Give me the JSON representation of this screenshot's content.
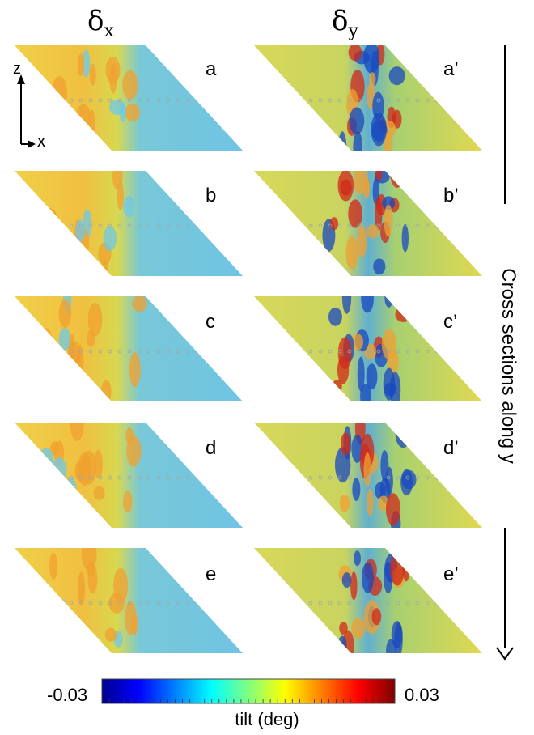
{
  "headers": {
    "dx_symbol": "δ",
    "dx_sub": "x",
    "dy_symbol": "δ",
    "dy_sub": "y"
  },
  "axes_inset": {
    "vertical": "z",
    "horizontal": "x"
  },
  "panels_left": [
    "a",
    "b",
    "c",
    "d",
    "e"
  ],
  "panels_right": [
    "a’",
    "b’",
    "c’",
    "d’",
    "e’"
  ],
  "side_label": "Cross sections along y",
  "colorbar": {
    "min_label": "-0.03",
    "max_label": "0.03",
    "label": "tilt (deg)",
    "colormap": "jet",
    "colors": [
      "#00008f",
      "#0000ff",
      "#0080ff",
      "#00ffff",
      "#80ff80",
      "#ffff00",
      "#ff8000",
      "#ff0000",
      "#800000"
    ]
  },
  "colors": {
    "background_blue": "#6ec8e8",
    "field_yellow": "#e8e050",
    "field_orange": "#f0a030",
    "hot_red": "#d02818",
    "cold_blue": "#1848c0"
  }
}
